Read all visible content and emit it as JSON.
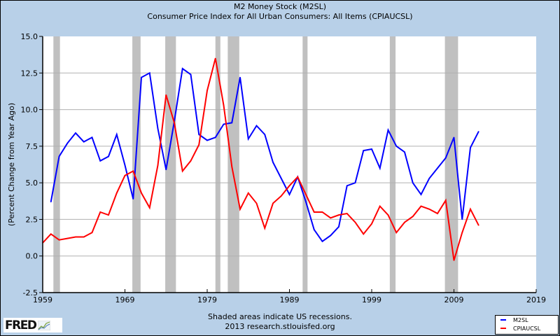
{
  "chart_data": {
    "type": "line",
    "title": "M2 Money Stock (M2SL)",
    "subtitle": "Consumer Price Index for All Urban Consumers: All Items (CPIAUCSL)",
    "xlabel": "",
    "ylabel": "(Percent Change from Year Ago)",
    "xlim": [
      1959,
      2019
    ],
    "ylim": [
      -2.5,
      15.0
    ],
    "x_ticks": [
      "1959",
      "1969",
      "1979",
      "1989",
      "1999",
      "2009",
      "2019"
    ],
    "y_ticks": [
      "-2.5",
      "0.0",
      "2.5",
      "5.0",
      "7.5",
      "10.0",
      "12.5",
      "15.0"
    ],
    "grid": true,
    "legend_position": "bottom-right",
    "recessions": [
      [
        1960.3,
        1961.1
      ],
      [
        1969.9,
        1970.9
      ],
      [
        1973.9,
        1975.2
      ],
      [
        1980.0,
        1980.6
      ],
      [
        1981.5,
        1982.9
      ],
      [
        1990.6,
        1991.2
      ],
      [
        2001.2,
        2001.9
      ],
      [
        2007.9,
        2009.5
      ]
    ],
    "series": [
      {
        "name": "M2SL",
        "color": "#0000ff",
        "x": [
          1960,
          1961,
          1962,
          1963,
          1964,
          1965,
          1966,
          1967,
          1968,
          1969,
          1970,
          1971,
          1972,
          1973,
          1974,
          1975,
          1976,
          1977,
          1978,
          1979,
          1980,
          1981,
          1982,
          1983,
          1984,
          1985,
          1986,
          1987,
          1988,
          1989,
          1990,
          1991,
          1992,
          1993,
          1994,
          1995,
          1996,
          1997,
          1998,
          1999,
          2000,
          2001,
          2002,
          2003,
          2004,
          2005,
          2006,
          2007,
          2008,
          2009,
          2010,
          2011,
          2012
        ],
        "values": [
          3.7,
          6.8,
          7.7,
          8.4,
          7.8,
          8.1,
          6.5,
          6.8,
          8.3,
          6.2,
          3.9,
          12.2,
          12.5,
          8.7,
          5.9,
          9.2,
          12.8,
          12.4,
          8.3,
          7.9,
          8.1,
          9.0,
          9.1,
          12.2,
          8.0,
          8.9,
          8.3,
          6.4,
          5.3,
          4.2,
          5.4,
          3.7,
          1.8,
          1.0,
          1.4,
          2.0,
          4.8,
          5.0,
          7.2,
          7.3,
          6.0,
          8.6,
          7.5,
          7.1,
          5.0,
          4.2,
          5.3,
          6.0,
          6.7,
          8.1,
          2.5,
          7.4,
          8.5
        ]
      },
      {
        "name": "CPIAUCSL",
        "color": "#ff0000",
        "x": [
          1959,
          1960,
          1961,
          1962,
          1963,
          1964,
          1965,
          1966,
          1967,
          1968,
          1969,
          1970,
          1971,
          1972,
          1973,
          1974,
          1975,
          1976,
          1977,
          1978,
          1979,
          1980,
          1981,
          1982,
          1983,
          1984,
          1985,
          1986,
          1987,
          1988,
          1989,
          1990,
          1991,
          1992,
          1993,
          1994,
          1995,
          1996,
          1997,
          1998,
          1999,
          2000,
          2001,
          2002,
          2003,
          2004,
          2005,
          2006,
          2007,
          2008,
          2009,
          2010,
          2011,
          2012
        ],
        "values": [
          0.9,
          1.5,
          1.1,
          1.2,
          1.3,
          1.3,
          1.6,
          3.0,
          2.8,
          4.3,
          5.5,
          5.8,
          4.3,
          3.3,
          6.2,
          11.0,
          9.1,
          5.8,
          6.5,
          7.6,
          11.3,
          13.5,
          10.3,
          6.1,
          3.2,
          4.3,
          3.6,
          1.9,
          3.6,
          4.1,
          4.8,
          5.4,
          4.2,
          3.0,
          3.0,
          2.6,
          2.8,
          2.9,
          2.3,
          1.5,
          2.2,
          3.4,
          2.8,
          1.6,
          2.3,
          2.7,
          3.4,
          3.2,
          2.9,
          3.8,
          -0.3,
          1.6,
          3.2,
          2.1
        ]
      }
    ]
  },
  "footer": {
    "note": "Shaded areas indicate US recessions.",
    "source": "2013 research.stlouisfed.org",
    "logo": "FRED"
  },
  "legend": [
    {
      "label": "M2SL",
      "color": "#0000ff"
    },
    {
      "label": "CPIAUCSL",
      "color": "#ff0000"
    }
  ],
  "colors": {
    "background": "#b8d0e8",
    "recession": "#c0c0c0",
    "grid": "#b0b0b0"
  }
}
